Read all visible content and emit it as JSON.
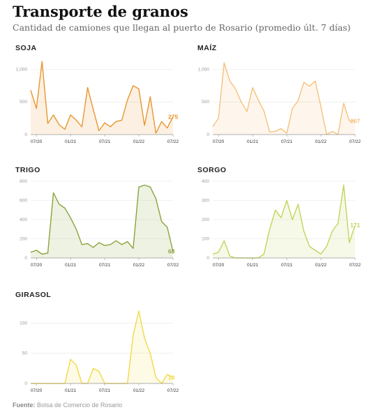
{
  "header": {
    "title": "Transporte de granos",
    "subtitle": "Cantidad de camiones que llegan al puerto de Rosario (promedio últ. 7 días)"
  },
  "footer": {
    "source_label": "Fuente:",
    "source_text": "Bolsa de Comercio de Rosario"
  },
  "chart_data": [
    {
      "type": "area",
      "title": "SOJA",
      "color": "#e8962f",
      "ylim": [
        0,
        1100
      ],
      "yticks": [
        0,
        500,
        1000
      ],
      "ytick_labels": [
        "0",
        "500",
        "1,000"
      ],
      "xticks": [
        "07/20",
        "01/21",
        "07/21",
        "01/22",
        "07/22"
      ],
      "last_label": "275",
      "x": [
        "2020-06",
        "2020-07",
        "2020-08",
        "2020-09",
        "2020-10",
        "2020-11",
        "2020-12",
        "2021-01",
        "2021-02",
        "2021-03",
        "2021-04",
        "2021-05",
        "2021-06",
        "2021-07",
        "2021-08",
        "2021-09",
        "2021-10",
        "2021-11",
        "2021-12",
        "2022-01",
        "2022-02",
        "2022-03",
        "2022-04",
        "2022-05",
        "2022-06",
        "2022-07"
      ],
      "values": [
        680,
        400,
        1120,
        170,
        300,
        150,
        80,
        300,
        220,
        120,
        720,
        380,
        60,
        180,
        120,
        200,
        220,
        530,
        750,
        700,
        140,
        580,
        20,
        200,
        100,
        275
      ]
    },
    {
      "type": "area",
      "title": "MAÍZ",
      "color": "#f5c27d",
      "ylim": [
        0,
        1100
      ],
      "yticks": [
        0,
        500,
        1000
      ],
      "ytick_labels": [
        "0",
        "500",
        "1,000"
      ],
      "xticks": [
        "07/20",
        "01/21",
        "07/21",
        "01/22",
        "07/22"
      ],
      "last_label": "207",
      "x": [
        "2020-06",
        "2020-07",
        "2020-08",
        "2020-09",
        "2020-10",
        "2020-11",
        "2020-12",
        "2021-01",
        "2021-02",
        "2021-03",
        "2021-04",
        "2021-05",
        "2021-06",
        "2021-07",
        "2021-08",
        "2021-09",
        "2021-10",
        "2021-11",
        "2021-12",
        "2022-01",
        "2022-02",
        "2022-03",
        "2022-04",
        "2022-05",
        "2022-06",
        "2022-07"
      ],
      "values": [
        120,
        250,
        1100,
        820,
        700,
        500,
        350,
        720,
        530,
        360,
        40,
        50,
        90,
        20,
        400,
        520,
        800,
        740,
        820,
        430,
        0,
        50,
        0,
        480,
        210,
        207
      ]
    },
    {
      "type": "area",
      "title": "TRIGO",
      "color": "#8aa33b",
      "ylim": [
        0,
        800
      ],
      "yticks": [
        0,
        200,
        400,
        600,
        800
      ],
      "ytick_labels": [
        "0",
        "200",
        "400",
        "600",
        "800"
      ],
      "xticks": [
        "07/20",
        "01/21",
        "07/21",
        "01/22",
        "07/22"
      ],
      "last_label": "68",
      "x": [
        "2020-06",
        "2020-07",
        "2020-08",
        "2020-09",
        "2020-10",
        "2020-11",
        "2020-12",
        "2021-01",
        "2021-02",
        "2021-03",
        "2021-04",
        "2021-05",
        "2021-06",
        "2021-07",
        "2021-08",
        "2021-09",
        "2021-10",
        "2021-11",
        "2021-12",
        "2022-01",
        "2022-02",
        "2022-03",
        "2022-04",
        "2022-05",
        "2022-06",
        "2022-07"
      ],
      "values": [
        60,
        80,
        40,
        50,
        680,
        560,
        520,
        420,
        300,
        140,
        150,
        110,
        160,
        130,
        140,
        180,
        140,
        170,
        100,
        740,
        760,
        740,
        620,
        380,
        320,
        68
      ]
    },
    {
      "type": "area",
      "title": "SORGO",
      "color": "#c2d45a",
      "ylim": [
        0,
        400
      ],
      "yticks": [
        0,
        100,
        200,
        300,
        400
      ],
      "ytick_labels": [
        "0",
        "100",
        "200",
        "300",
        "400"
      ],
      "xticks": [
        "07/20",
        "01/21",
        "07/21",
        "01/22",
        "07/22"
      ],
      "last_label": "171",
      "x": [
        "2020-06",
        "2020-07",
        "2020-08",
        "2020-09",
        "2020-10",
        "2020-11",
        "2020-12",
        "2021-01",
        "2021-02",
        "2021-03",
        "2021-04",
        "2021-05",
        "2021-06",
        "2021-07",
        "2021-08",
        "2021-09",
        "2021-10",
        "2021-11",
        "2021-12",
        "2022-01",
        "2022-02",
        "2022-03",
        "2022-04",
        "2022-05",
        "2022-06",
        "2022-07"
      ],
      "values": [
        20,
        30,
        90,
        10,
        0,
        0,
        0,
        0,
        0,
        20,
        150,
        250,
        210,
        300,
        200,
        280,
        140,
        60,
        40,
        20,
        60,
        140,
        180,
        380,
        80,
        171
      ]
    },
    {
      "type": "area",
      "title": "GIRASOL",
      "color": "#f2d94a",
      "ylim": [
        0,
        120
      ],
      "yticks": [
        0,
        50,
        100
      ],
      "ytick_labels": [
        "0",
        "50",
        "100"
      ],
      "xticks": [
        "07/20",
        "01/21",
        "07/21",
        "01/22",
        "07/22"
      ],
      "last_label": "10",
      "x": [
        "2020-06",
        "2020-07",
        "2020-08",
        "2020-09",
        "2020-10",
        "2020-11",
        "2020-12",
        "2021-01",
        "2021-02",
        "2021-03",
        "2021-04",
        "2021-05",
        "2021-06",
        "2021-07",
        "2021-08",
        "2021-09",
        "2021-10",
        "2021-11",
        "2021-12",
        "2022-01",
        "2022-02",
        "2022-03",
        "2022-04",
        "2022-05",
        "2022-06",
        "2022-07"
      ],
      "values": [
        0,
        0,
        0,
        0,
        0,
        0,
        0,
        40,
        30,
        0,
        0,
        25,
        20,
        0,
        0,
        0,
        0,
        0,
        80,
        120,
        75,
        50,
        10,
        0,
        15,
        10
      ]
    }
  ]
}
